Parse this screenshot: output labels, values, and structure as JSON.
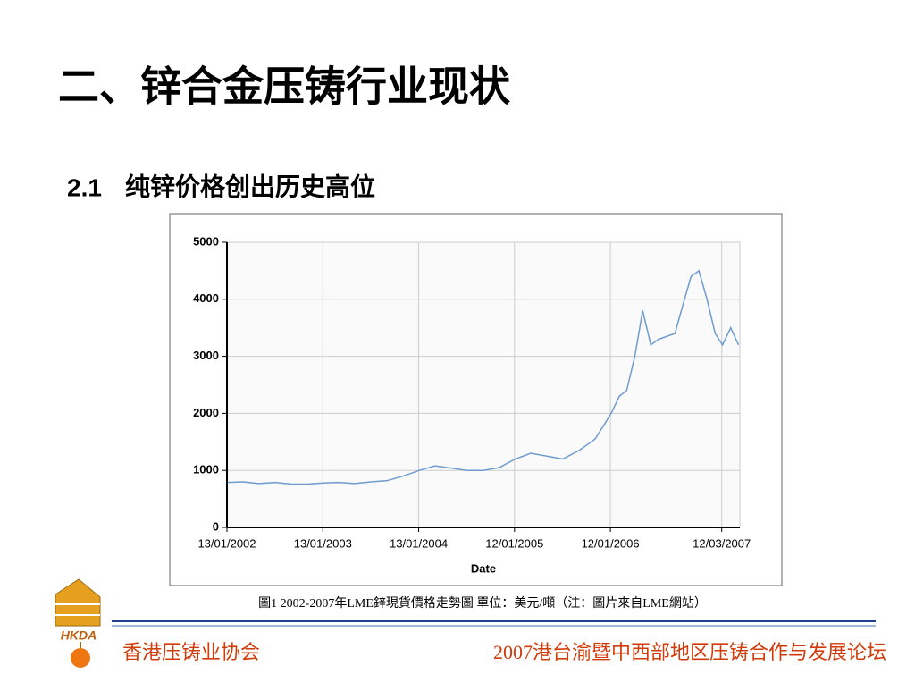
{
  "slide": {
    "title": "二、锌合金压铸行业现状",
    "section_number": "2.1",
    "section_title": "纯锌价格创出历史高位",
    "caption": "圖1 2002-2007年LME鋅現貨價格走勢圖  單位：美元/噸（注：圖片來自LME網站）",
    "logo": "HKDA",
    "footer_left": "香港压铸业协会",
    "footer_right": "2007港台渝暨中西部地区压铸合作与发展论坛"
  },
  "chart_data": {
    "type": "line",
    "x_label": "Date",
    "x": [
      "2002-01-15",
      "2002-03-15",
      "2002-05-15",
      "2002-07-15",
      "2002-09-15",
      "2002-11-15",
      "2003-01-15",
      "2003-03-15",
      "2003-05-15",
      "2003-07-15",
      "2003-09-15",
      "2003-11-15",
      "2004-01-15",
      "2004-03-15",
      "2004-05-15",
      "2004-07-15",
      "2004-09-15",
      "2004-11-15",
      "2005-01-15",
      "2005-03-15",
      "2005-05-15",
      "2005-07-15",
      "2005-09-15",
      "2005-11-15",
      "2006-01-15",
      "2006-02-15",
      "2006-03-15",
      "2006-04-15",
      "2006-05-15",
      "2006-06-15",
      "2006-07-15",
      "2006-08-15",
      "2006-09-15",
      "2006-10-15",
      "2006-11-15",
      "2006-12-15",
      "2007-01-15",
      "2007-02-15",
      "2007-03-15",
      "2007-04-15",
      "2007-05-15"
    ],
    "series": [
      {
        "name": "Zinc",
        "color": "#6e9ccf",
        "values": [
          790,
          800,
          770,
          790,
          760,
          760,
          780,
          790,
          770,
          800,
          820,
          900,
          1000,
          1080,
          1040,
          1000,
          1000,
          1050,
          1200,
          1300,
          1250,
          1200,
          1350,
          1550,
          2000,
          2300,
          2400,
          3000,
          3800,
          3200,
          3300,
          3350,
          3400,
          3900,
          4400,
          4500,
          4000,
          3400,
          3200,
          3500,
          3200
        ]
      }
    ],
    "xlim": [
      "2002-01-13",
      "2007-05-20"
    ],
    "xticks": [
      {
        "value": "2002-01-13",
        "label": "13/01/2002"
      },
      {
        "value": "2003-01-13",
        "label": "13/01/2003"
      },
      {
        "value": "2004-01-13",
        "label": "13/01/2004"
      },
      {
        "value": "2005-01-12",
        "label": "12/01/2005"
      },
      {
        "value": "2006-01-12",
        "label": "12/01/2006"
      },
      {
        "value": "2007-03-12",
        "label": "12/03/2007"
      }
    ],
    "ylim": [
      0,
      5000
    ],
    "yticks": [
      0,
      1000,
      2000,
      3000,
      4000,
      5000
    ],
    "grid": true
  }
}
